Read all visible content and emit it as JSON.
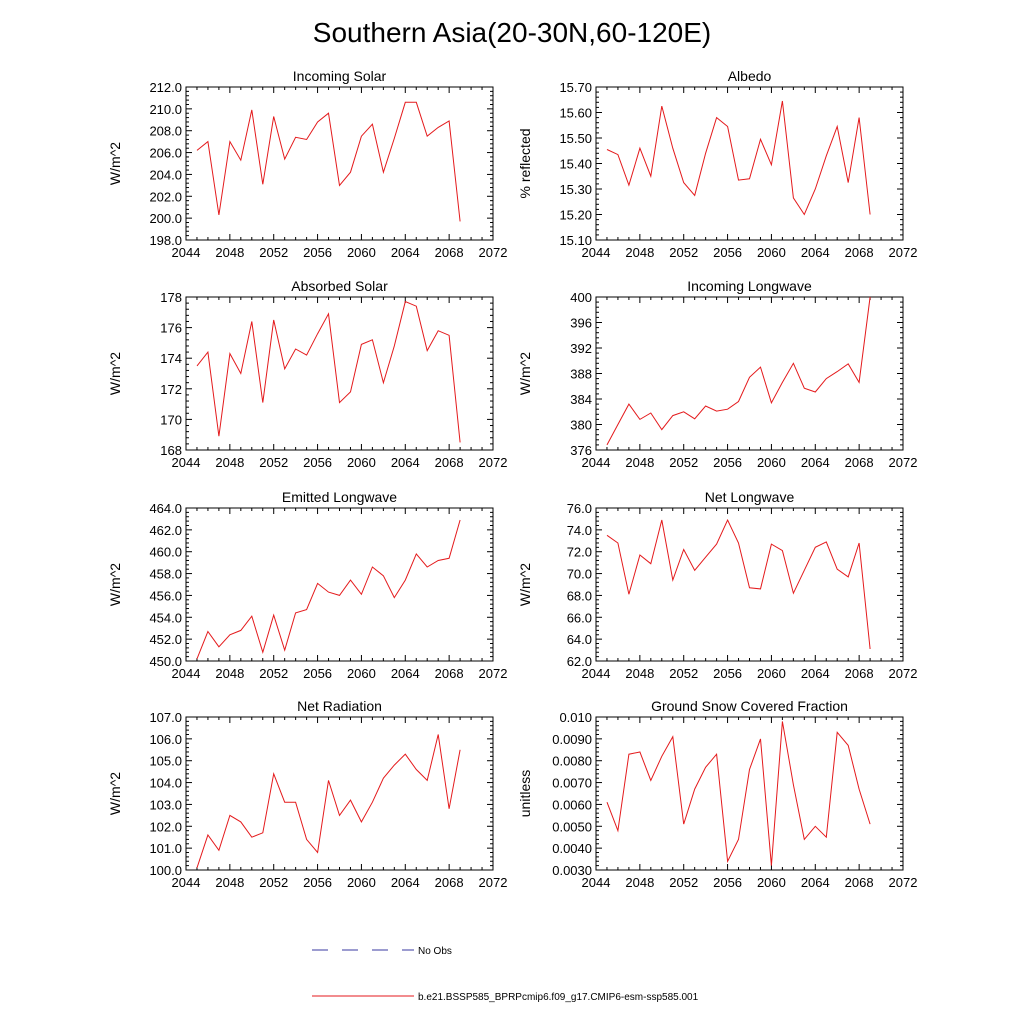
{
  "figure": {
    "title": "Southern Asia(20-30N,60-120E)"
  },
  "legend": {
    "items": [
      {
        "label": "No Obs",
        "color": "#3a3aa0",
        "dashed": true
      },
      {
        "label": "b.e21.BSSP585_BPRPcmip6.f09_g17.CMIP6-esm-ssp585.001",
        "color": "#e41a1c",
        "dashed": false
      }
    ]
  },
  "chart_data": [
    {
      "type": "line",
      "title": "Incoming Solar",
      "ylabel": "W/m^2",
      "xlim": [
        2044,
        2072
      ],
      "ylim": [
        198.0,
        212.0
      ],
      "x_ticks": [
        2044,
        2048,
        2052,
        2056,
        2060,
        2064,
        2068,
        2072
      ],
      "y_ticks": [
        "198.0",
        "200.0",
        "202.0",
        "204.0",
        "206.0",
        "208.0",
        "210.0",
        "212.0"
      ],
      "series": [
        {
          "color": "#e41a1c",
          "x": [
            2045,
            2046,
            2047,
            2048,
            2049,
            2050,
            2051,
            2052,
            2053,
            2054,
            2055,
            2056,
            2057,
            2058,
            2059,
            2060,
            2061,
            2062,
            2063,
            2064,
            2065,
            2066,
            2067,
            2068,
            2069
          ],
          "values": [
            206.2,
            207.0,
            200.3,
            207.0,
            205.3,
            209.9,
            203.1,
            209.3,
            205.4,
            207.4,
            207.2,
            208.8,
            209.6,
            203.0,
            204.2,
            207.5,
            208.6,
            204.2,
            207.3,
            210.6,
            210.6,
            207.5,
            208.3,
            208.9,
            199.7
          ]
        }
      ]
    },
    {
      "type": "line",
      "title": "Albedo",
      "ylabel": "% reflected",
      "xlim": [
        2044,
        2072
      ],
      "ylim": [
        15.1,
        15.7
      ],
      "x_ticks": [
        2044,
        2048,
        2052,
        2056,
        2060,
        2064,
        2068,
        2072
      ],
      "y_ticks": [
        "15.10",
        "15.20",
        "15.30",
        "15.40",
        "15.50",
        "15.60",
        "15.70"
      ],
      "series": [
        {
          "color": "#e41a1c",
          "x": [
            2045,
            2046,
            2047,
            2048,
            2049,
            2050,
            2051,
            2052,
            2053,
            2054,
            2055,
            2056,
            2057,
            2058,
            2059,
            2060,
            2061,
            2062,
            2063,
            2064,
            2065,
            2066,
            2067,
            2068,
            2069
          ],
          "values": [
            15.455,
            15.435,
            15.315,
            15.46,
            15.35,
            15.625,
            15.46,
            15.325,
            15.275,
            15.44,
            15.58,
            15.545,
            15.335,
            15.34,
            15.495,
            15.395,
            15.645,
            15.265,
            15.2,
            15.3,
            15.43,
            15.545,
            15.325,
            15.58,
            15.2
          ]
        }
      ]
    },
    {
      "type": "line",
      "title": "Absorbed Solar",
      "ylabel": "W/m^2",
      "xlim": [
        2044,
        2072
      ],
      "ylim": [
        168,
        178
      ],
      "x_ticks": [
        2044,
        2048,
        2052,
        2056,
        2060,
        2064,
        2068,
        2072
      ],
      "y_ticks": [
        "168",
        "170",
        "172",
        "174",
        "176",
        "178"
      ],
      "series": [
        {
          "color": "#e41a1c",
          "x": [
            2045,
            2046,
            2047,
            2048,
            2049,
            2050,
            2051,
            2052,
            2053,
            2054,
            2055,
            2056,
            2057,
            2058,
            2059,
            2060,
            2061,
            2062,
            2063,
            2064,
            2065,
            2066,
            2067,
            2068,
            2069
          ],
          "values": [
            173.5,
            174.4,
            168.9,
            174.3,
            173.0,
            176.4,
            171.1,
            176.5,
            173.3,
            174.6,
            174.2,
            175.6,
            176.9,
            171.1,
            171.8,
            174.9,
            175.2,
            172.4,
            174.8,
            177.7,
            177.4,
            174.5,
            175.8,
            175.5,
            168.5
          ]
        }
      ]
    },
    {
      "type": "line",
      "title": "Incoming Longwave",
      "ylabel": "W/m^2",
      "xlim": [
        2044,
        2072
      ],
      "ylim": [
        376,
        400
      ],
      "x_ticks": [
        2044,
        2048,
        2052,
        2056,
        2060,
        2064,
        2068,
        2072
      ],
      "y_ticks": [
        "376",
        "380",
        "384",
        "388",
        "392",
        "396",
        "400"
      ],
      "series": [
        {
          "color": "#e41a1c",
          "x": [
            2045,
            2046,
            2047,
            2048,
            2049,
            2050,
            2051,
            2052,
            2053,
            2054,
            2055,
            2056,
            2057,
            2058,
            2059,
            2060,
            2061,
            2062,
            2063,
            2064,
            2065,
            2066,
            2067,
            2068,
            2069
          ],
          "values": [
            376.8,
            380.0,
            383.2,
            380.8,
            381.8,
            379.2,
            381.4,
            382.0,
            380.9,
            382.9,
            382.1,
            382.4,
            383.6,
            387.4,
            389.0,
            383.4,
            386.6,
            389.6,
            385.7,
            385.1,
            387.2,
            388.3,
            389.5,
            386.6,
            400.0
          ]
        }
      ]
    },
    {
      "type": "line",
      "title": "Emitted Longwave",
      "ylabel": "W/m^2",
      "xlim": [
        2044,
        2072
      ],
      "ylim": [
        450.0,
        464.0
      ],
      "x_ticks": [
        2044,
        2048,
        2052,
        2056,
        2060,
        2064,
        2068,
        2072
      ],
      "y_ticks": [
        "450.0",
        "452.0",
        "454.0",
        "456.0",
        "458.0",
        "460.0",
        "462.0",
        "464.0"
      ],
      "series": [
        {
          "color": "#e41a1c",
          "x": [
            2045,
            2046,
            2047,
            2048,
            2049,
            2050,
            2051,
            2052,
            2053,
            2054,
            2055,
            2056,
            2057,
            2058,
            2059,
            2060,
            2061,
            2062,
            2063,
            2064,
            2065,
            2066,
            2067,
            2068,
            2069
          ],
          "values": [
            450.2,
            452.7,
            451.3,
            452.4,
            452.8,
            454.1,
            450.8,
            454.2,
            451.0,
            454.4,
            454.7,
            457.1,
            456.3,
            456.0,
            457.4,
            456.1,
            458.6,
            457.8,
            455.8,
            457.4,
            459.8,
            458.6,
            459.2,
            459.4,
            462.9
          ]
        }
      ]
    },
    {
      "type": "line",
      "title": "Net Longwave",
      "ylabel": "W/m^2",
      "xlim": [
        2044,
        2072
      ],
      "ylim": [
        62.0,
        76.0
      ],
      "x_ticks": [
        2044,
        2048,
        2052,
        2056,
        2060,
        2064,
        2068,
        2072
      ],
      "y_ticks": [
        "62.0",
        "64.0",
        "66.0",
        "68.0",
        "70.0",
        "72.0",
        "74.0",
        "76.0"
      ],
      "series": [
        {
          "color": "#e41a1c",
          "x": [
            2045,
            2046,
            2047,
            2048,
            2049,
            2050,
            2051,
            2052,
            2053,
            2054,
            2055,
            2056,
            2057,
            2058,
            2059,
            2060,
            2061,
            2062,
            2063,
            2064,
            2065,
            2066,
            2067,
            2068,
            2069
          ],
          "values": [
            73.5,
            72.8,
            68.1,
            71.7,
            70.9,
            74.9,
            69.4,
            72.2,
            70.3,
            71.5,
            72.7,
            74.9,
            72.8,
            68.7,
            68.6,
            72.7,
            72.1,
            68.2,
            70.3,
            72.4,
            72.9,
            70.4,
            69.7,
            72.8,
            63.1
          ]
        }
      ]
    },
    {
      "type": "line",
      "title": "Net Radiation",
      "ylabel": "W/m^2",
      "xlim": [
        2044,
        2072
      ],
      "ylim": [
        100.0,
        107.0
      ],
      "x_ticks": [
        2044,
        2048,
        2052,
        2056,
        2060,
        2064,
        2068,
        2072
      ],
      "y_ticks": [
        "100.0",
        "101.0",
        "102.0",
        "103.0",
        "104.0",
        "105.0",
        "106.0",
        "107.0"
      ],
      "series": [
        {
          "color": "#e41a1c",
          "x": [
            2045,
            2046,
            2047,
            2048,
            2049,
            2050,
            2051,
            2052,
            2053,
            2054,
            2055,
            2056,
            2057,
            2058,
            2059,
            2060,
            2061,
            2062,
            2063,
            2064,
            2065,
            2066,
            2067,
            2068,
            2069
          ],
          "values": [
            100.1,
            101.6,
            100.9,
            102.5,
            102.2,
            101.5,
            101.7,
            104.4,
            103.1,
            103.1,
            101.4,
            100.8,
            104.1,
            102.5,
            103.2,
            102.2,
            103.1,
            104.2,
            104.8,
            105.3,
            104.6,
            104.1,
            106.2,
            102.8,
            105.5
          ]
        }
      ]
    },
    {
      "type": "line",
      "title": "Ground Snow Covered Fraction",
      "ylabel": "unitless",
      "xlim": [
        2044,
        2072
      ],
      "ylim": [
        0.003,
        0.01
      ],
      "x_ticks": [
        2044,
        2048,
        2052,
        2056,
        2060,
        2064,
        2068,
        2072
      ],
      "y_ticks": [
        "0.0030",
        "0.0040",
        "0.0050",
        "0.0060",
        "0.0070",
        "0.0080",
        "0.0090",
        "0.010"
      ],
      "series": [
        {
          "color": "#e41a1c",
          "x": [
            2045,
            2046,
            2047,
            2048,
            2049,
            2050,
            2051,
            2052,
            2053,
            2054,
            2055,
            2056,
            2057,
            2058,
            2059,
            2060,
            2061,
            2062,
            2063,
            2064,
            2065,
            2066,
            2067,
            2068,
            2069
          ],
          "values": [
            0.0061,
            0.0048,
            0.0083,
            0.0084,
            0.0071,
            0.0082,
            0.0091,
            0.0051,
            0.0067,
            0.0077,
            0.0083,
            0.0034,
            0.0044,
            0.0076,
            0.009,
            0.0032,
            0.0098,
            0.0069,
            0.0044,
            0.005,
            0.0045,
            0.0093,
            0.0087,
            0.0067,
            0.0051
          ]
        }
      ]
    }
  ]
}
